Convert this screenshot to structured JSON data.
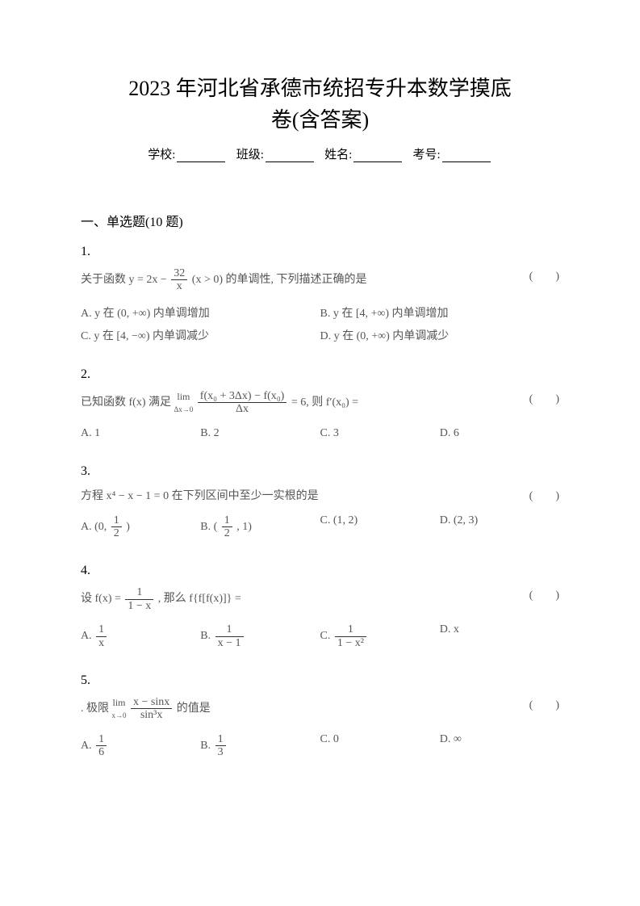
{
  "title_line1": "2023 年河北省承德市统招专升本数学摸底",
  "title_line2": "卷(含答案)",
  "info": {
    "school_label": "学校:",
    "class_label": "班级:",
    "name_label": "姓名:",
    "examno_label": "考号:"
  },
  "section": "一、单选题(10 题)",
  "q1": {
    "num": "1.",
    "stem_pre": "关于函数 y = 2x − ",
    "frac_num": "32",
    "frac_den": "x",
    "stem_post": "(x > 0) 的单调性, 下列描述正确的是",
    "paren": "(　　)",
    "optA": "A. y 在 (0, +∞) 内单调增加",
    "optB": "B. y 在 [4, +∞) 内单调增加",
    "optC": "C. y 在 [4, −∞) 内单调减少",
    "optD": "D. y 在 (0, +∞) 内单调减少"
  },
  "q2": {
    "num": "2.",
    "stem_pre": "已知函数 f(x) 满足 ",
    "lim_label": "lim",
    "lim_sub": "Δx→0",
    "frac_num": "f(x₀ + 3Δx) − f(x₀)",
    "frac_den": "Δx",
    "stem_post": " = 6, 则 f′(x₀) =",
    "paren": "(　　)",
    "optA": "A. 1",
    "optB": "B. 2",
    "optC": "C. 3",
    "optD": "D. 6"
  },
  "q3": {
    "num": "3.",
    "stem": "方程 x⁴ − x − 1 = 0 在下列区间中至少一实根的是",
    "paren": "(　　)",
    "optA_pre": "A. (0, ",
    "optA_num": "1",
    "optA_den": "2",
    "optA_post": ")",
    "optB_pre": "B. (",
    "optB_num": "1",
    "optB_den": "2",
    "optB_post": ", 1)",
    "optC": "C. (1, 2)",
    "optD": "D. (2, 3)"
  },
  "q4": {
    "num": "4.",
    "stem_pre": "设 f(x) = ",
    "stem_num": "1",
    "stem_den": "1 − x",
    "stem_post": ", 那么 f{f[f(x)]} =",
    "paren": "(　　)",
    "optA_pre": "A. ",
    "optA_num": "1",
    "optA_den": "x",
    "optB_pre": "B. ",
    "optB_num": "1",
    "optB_den": "x − 1",
    "optC_pre": "C. ",
    "optC_num": "1",
    "optC_den": "1 − x²",
    "optD": "D. x"
  },
  "q5": {
    "num": "5.",
    "stem_pre": ". 极限 ",
    "lim_label": "lim",
    "lim_sub": "x→0",
    "frac_num": "x − sinx",
    "frac_den": "sin³x",
    "stem_post": " 的值是",
    "paren": "(　　)",
    "optA_pre": "A. ",
    "optA_num": "1",
    "optA_den": "6",
    "optB_pre": "B. ",
    "optB_num": "1",
    "optB_den": "3",
    "optC": "C. 0",
    "optD": "D. ∞"
  }
}
